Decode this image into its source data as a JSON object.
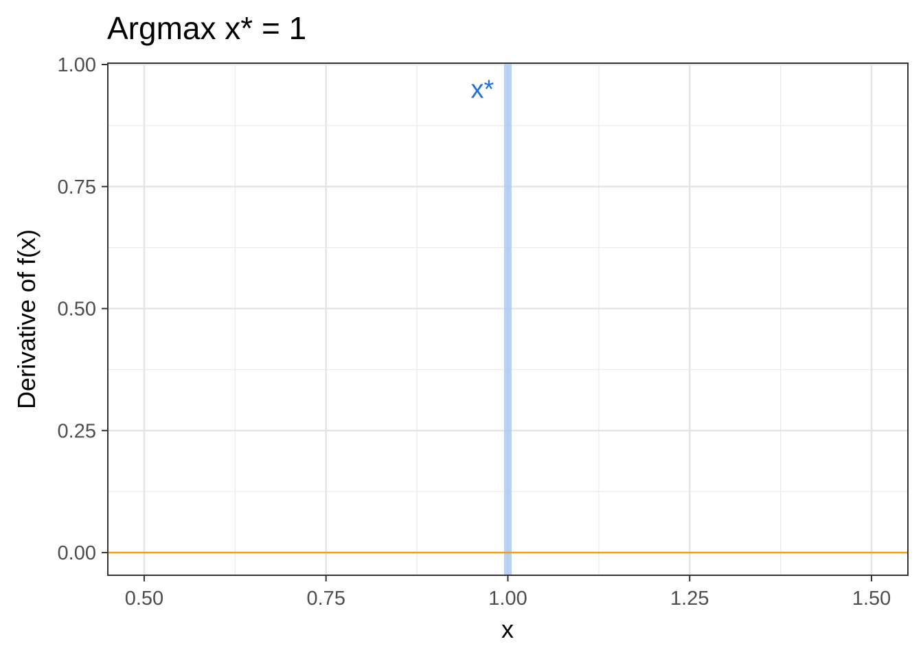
{
  "chart_data": {
    "type": "line",
    "title": "Argmax x* = 1",
    "xlabel": "x",
    "ylabel": "Derivative of f(x)",
    "xlim": [
      0.45,
      1.55
    ],
    "ylim": [
      -0.045,
      1.0
    ],
    "x_ticks": [
      0.5,
      0.75,
      1.0,
      1.25,
      1.5
    ],
    "x_tick_labels": [
      "0.50",
      "0.75",
      "1.00",
      "1.25",
      "1.50"
    ],
    "y_ticks": [
      0.0,
      0.25,
      0.5,
      0.75,
      1.0
    ],
    "y_tick_labels": [
      "0.00",
      "0.25",
      "0.50",
      "0.75",
      "1.00"
    ],
    "grid": true,
    "series": [
      {
        "x": [
          0.45,
          1.55
        ],
        "y": [
          0,
          0
        ],
        "color": "#f39c12"
      }
    ],
    "vline": {
      "x": 1.0,
      "color": "#a9c8f0"
    },
    "annotation": {
      "text": "x*",
      "x": 0.965,
      "y": 0.95,
      "color": "#1f6fe5"
    }
  }
}
